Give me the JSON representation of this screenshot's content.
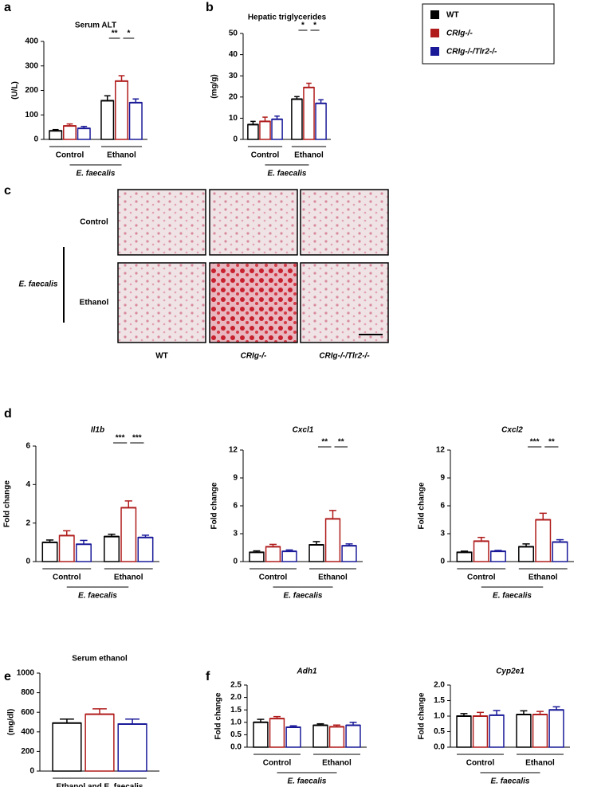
{
  "chart_data": [
    {
      "type": "bar",
      "panel": "a",
      "title": "Serum ALT",
      "ylabel": "(U/L)",
      "groups": [
        "Control",
        "Ethanol"
      ],
      "group_note": "E. faecalis",
      "ylim": [
        0,
        400
      ],
      "yticks": [
        0,
        100,
        200,
        300,
        400
      ],
      "series": [
        {
          "name": "WT",
          "color": "#000000",
          "values": [
            35,
            158
          ],
          "errors": [
            5,
            20
          ]
        },
        {
          "name": "CRIg-/-",
          "color": "#b01c1c",
          "values": [
            55,
            238
          ],
          "errors": [
            8,
            22
          ]
        },
        {
          "name": "CRIg-/-/Tlr2-/-",
          "color": "#1a1a99",
          "values": [
            45,
            150
          ],
          "errors": [
            8,
            15
          ]
        }
      ],
      "significance": [
        {
          "group": 1,
          "pair": [
            0,
            1
          ],
          "label": "**"
        },
        {
          "group": 1,
          "pair": [
            1,
            2
          ],
          "label": "*"
        }
      ]
    },
    {
      "type": "bar",
      "panel": "b",
      "title": "Hepatic triglycerides",
      "ylabel": "(mg/g)",
      "groups": [
        "Control",
        "Ethanol"
      ],
      "group_note": "E. faecalis",
      "ylim": [
        0,
        50
      ],
      "yticks": [
        0,
        10,
        20,
        30,
        40,
        50
      ],
      "series": [
        {
          "color": "#000000",
          "values": [
            7,
            19
          ],
          "errors": [
            1.5,
            1.2
          ]
        },
        {
          "color": "#b01c1c",
          "values": [
            8.5,
            24.5
          ],
          "errors": [
            2,
            2
          ]
        },
        {
          "color": "#1a1a99",
          "values": [
            9.5,
            17
          ],
          "errors": [
            1.5,
            1.7
          ]
        }
      ],
      "significance": [
        {
          "group": 1,
          "pair": [
            0,
            1
          ],
          "label": "*"
        },
        {
          "group": 1,
          "pair": [
            1,
            2
          ],
          "label": "*"
        }
      ]
    },
    {
      "type": "bar",
      "panel": "d",
      "title": "Il1b",
      "ylabel": "Fold change",
      "groups": [
        "Control",
        "Ethanol"
      ],
      "group_note": "E. faecalis",
      "ylim": [
        0,
        6
      ],
      "yticks": [
        0,
        2,
        4,
        6
      ],
      "series": [
        {
          "color": "#000000",
          "values": [
            1.0,
            1.3
          ],
          "errors": [
            0.12,
            0.12
          ]
        },
        {
          "color": "#b01c1c",
          "values": [
            1.35,
            2.8
          ],
          "errors": [
            0.25,
            0.35
          ]
        },
        {
          "color": "#1a1a99",
          "values": [
            0.9,
            1.25
          ],
          "errors": [
            0.2,
            0.12
          ]
        }
      ],
      "significance": [
        {
          "group": 1,
          "pair": [
            0,
            1
          ],
          "label": "***"
        },
        {
          "group": 1,
          "pair": [
            1,
            2
          ],
          "label": "***"
        }
      ]
    },
    {
      "type": "bar",
      "title": "Cxcl1",
      "ylabel": "Fold change",
      "groups": [
        "Control",
        "Ethanol"
      ],
      "group_note": "E. faecalis",
      "ylim": [
        0,
        12
      ],
      "yticks": [
        0,
        3,
        6,
        9,
        12
      ],
      "series": [
        {
          "color": "#000000",
          "values": [
            1.0,
            1.8
          ],
          "errors": [
            0.15,
            0.35
          ]
        },
        {
          "color": "#b01c1c",
          "values": [
            1.6,
            4.6
          ],
          "errors": [
            0.25,
            0.9
          ]
        },
        {
          "color": "#1a1a99",
          "values": [
            1.1,
            1.7
          ],
          "errors": [
            0.15,
            0.2
          ]
        }
      ],
      "significance": [
        {
          "group": 1,
          "pair": [
            0,
            1
          ],
          "label": "**"
        },
        {
          "group": 1,
          "pair": [
            1,
            2
          ],
          "label": "**"
        }
      ]
    },
    {
      "type": "bar",
      "title": "Cxcl2",
      "ylabel": "Fold change",
      "groups": [
        "Control",
        "Ethanol"
      ],
      "group_note": "E. faecalis",
      "ylim": [
        0,
        12
      ],
      "yticks": [
        0,
        3,
        6,
        9,
        12
      ],
      "series": [
        {
          "color": "#000000",
          "values": [
            1.0,
            1.6
          ],
          "errors": [
            0.12,
            0.3
          ]
        },
        {
          "color": "#b01c1c",
          "values": [
            2.2,
            4.5
          ],
          "errors": [
            0.4,
            0.7
          ]
        },
        {
          "color": "#1a1a99",
          "values": [
            1.1,
            2.1
          ],
          "errors": [
            0.1,
            0.25
          ]
        }
      ],
      "significance": [
        {
          "group": 1,
          "pair": [
            0,
            1
          ],
          "label": "***"
        },
        {
          "group": 1,
          "pair": [
            1,
            2
          ],
          "label": "**"
        }
      ]
    },
    {
      "type": "bar",
      "panel": "e",
      "title": "Serum ethanol",
      "ylabel": "(mg/dl)",
      "groups": [
        "Ethanol and E. faecalis"
      ],
      "ylim": [
        0,
        1000
      ],
      "yticks": [
        0,
        200,
        400,
        600,
        800,
        1000
      ],
      "series": [
        {
          "color": "#000000",
          "values": [
            490
          ],
          "errors": [
            40
          ]
        },
        {
          "color": "#b01c1c",
          "values": [
            580
          ],
          "errors": [
            55
          ]
        },
        {
          "color": "#1a1a99",
          "values": [
            480
          ],
          "errors": [
            50
          ]
        }
      ]
    },
    {
      "type": "bar",
      "panel": "f",
      "title": "Adh1",
      "ylabel": "Fold change",
      "groups": [
        "Control",
        "Ethanol"
      ],
      "group_note": "E. faecalis",
      "ylim": [
        0,
        2.5
      ],
      "yticks": [
        {
          "value": 0,
          "label": "0.0"
        },
        0.5,
        {
          "value": 1,
          "label": "1.0"
        },
        1.5,
        {
          "value": 2,
          "label": "2.0"
        },
        2.5
      ],
      "series": [
        {
          "color": "#000000",
          "values": [
            1.0,
            0.88
          ],
          "errors": [
            0.12,
            0.06
          ]
        },
        {
          "color": "#b01c1c",
          "values": [
            1.15,
            0.82
          ],
          "errors": [
            0.08,
            0.07
          ]
        },
        {
          "color": "#1a1a99",
          "values": [
            0.8,
            0.88
          ],
          "errors": [
            0.06,
            0.12
          ]
        }
      ]
    },
    {
      "type": "bar",
      "title": "Cyp2e1",
      "ylabel": "Fold change",
      "groups": [
        "Control",
        "Ethanol"
      ],
      "group_note": "E. faecalis",
      "ylim": [
        0,
        2
      ],
      "yticks": [
        {
          "value": 0,
          "label": "0.0"
        },
        0.5,
        {
          "value": 1,
          "label": "1.0"
        },
        1.5,
        {
          "value": 2,
          "label": "2.0"
        }
      ],
      "series": [
        {
          "color": "#000000",
          "values": [
            1.0,
            1.05
          ],
          "errors": [
            0.08,
            0.12
          ]
        },
        {
          "color": "#b01c1c",
          "values": [
            1.0,
            1.05
          ],
          "errors": [
            0.12,
            0.1
          ]
        },
        {
          "color": "#1a1a99",
          "values": [
            1.03,
            1.2
          ],
          "errors": [
            0.15,
            0.1
          ]
        }
      ]
    }
  ],
  "figure": {
    "panel": "c",
    "rows": [
      "Control",
      "Ethanol"
    ],
    "columns": [
      "WT",
      "CRIg-/-",
      "CRIg-/-/Tlr2-/-"
    ],
    "row_note": "E. faecalis"
  }
}
